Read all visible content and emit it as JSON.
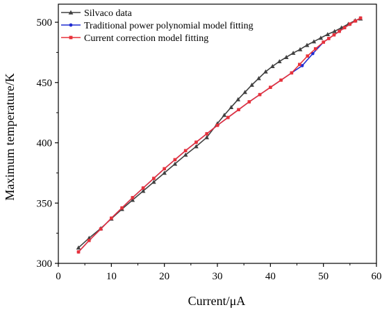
{
  "chart_data": {
    "type": "line",
    "xlabel": "Current/μA",
    "ylabel": "Maximum temperature/K",
    "xlim": [
      0,
      60
    ],
    "ylim": [
      300,
      515
    ],
    "x_ticks": [
      0,
      10,
      20,
      30,
      40,
      50,
      60
    ],
    "y_ticks": [
      300,
      350,
      400,
      450,
      500
    ],
    "grid": false,
    "legend_position": "top-left",
    "series": [
      {
        "name": "Silvaco data",
        "color": "#404040",
        "marker": "triangle",
        "x": [
          3.8,
          5.8,
          8.0,
          10.0,
          12.0,
          14.0,
          16.0,
          18.0,
          20.0,
          22.0,
          24.0,
          26.0,
          28.0,
          30.0,
          31.3,
          32.6,
          33.9,
          35.2,
          36.5,
          37.8,
          39.1,
          40.4,
          41.7,
          43.0,
          44.3,
          45.6,
          46.9,
          48.2,
          49.5,
          50.8,
          52.1,
          53.4,
          54.7,
          56.0,
          57.0
        ],
        "y": [
          313.0,
          321.0,
          329.0,
          337.0,
          345.0,
          352.5,
          360.0,
          367.5,
          375.0,
          382.5,
          390.0,
          397.0,
          404.5,
          416.0,
          423.0,
          429.5,
          436.0,
          442.0,
          448.0,
          453.5,
          459.0,
          463.5,
          467.5,
          471.0,
          474.5,
          477.5,
          481.0,
          484.0,
          487.0,
          490.0,
          492.5,
          495.5,
          498.5,
          501.5,
          503.0
        ]
      },
      {
        "name": "Traditional power polynomial model fitting",
        "color": "#1f2bd1",
        "marker": "circle",
        "x": [
          3.8,
          5.8,
          8.0,
          10.0,
          12.0,
          14.0,
          16.0,
          18.0,
          20.0,
          22.0,
          24.0,
          26.0,
          28.0,
          30.0,
          32.0,
          34.0,
          36.0,
          38.0,
          40.0,
          42.0,
          44.0,
          46.0,
          48.0,
          50.0,
          51.0,
          52.0,
          53.0,
          54.0,
          55.0,
          56.0,
          57.0
        ],
        "y": [
          309.5,
          319.0,
          328.5,
          337.5,
          346.0,
          354.5,
          362.5,
          370.5,
          378.5,
          386.0,
          393.5,
          400.5,
          407.5,
          414.5,
          421.0,
          427.5,
          434.0,
          440.0,
          446.0,
          452.0,
          458.0,
          464.0,
          474.0,
          483.5,
          486.5,
          489.5,
          492.5,
          495.5,
          498.5,
          501.0,
          503.5
        ]
      },
      {
        "name": "Current correction model fitting",
        "color": "#e8323a",
        "marker": "square",
        "x": [
          3.8,
          5.8,
          8.0,
          10.0,
          12.0,
          14.0,
          16.0,
          18.0,
          20.0,
          22.0,
          24.0,
          26.0,
          28.0,
          30.0,
          32.0,
          34.0,
          36.0,
          38.0,
          40.0,
          42.0,
          44.0,
          45.5,
          47.0,
          48.5,
          50.0,
          51.0,
          52.0,
          53.0,
          54.0,
          55.0,
          56.0,
          57.0
        ],
        "y": [
          309.5,
          319.0,
          328.5,
          337.5,
          346.0,
          354.5,
          362.5,
          370.5,
          378.5,
          386.0,
          393.5,
          400.5,
          407.5,
          414.5,
          421.0,
          427.5,
          434.0,
          440.0,
          446.0,
          452.0,
          458.0,
          465.0,
          472.0,
          478.0,
          483.5,
          486.5,
          489.5,
          492.5,
          495.5,
          498.5,
          501.0,
          503.5
        ]
      }
    ]
  }
}
